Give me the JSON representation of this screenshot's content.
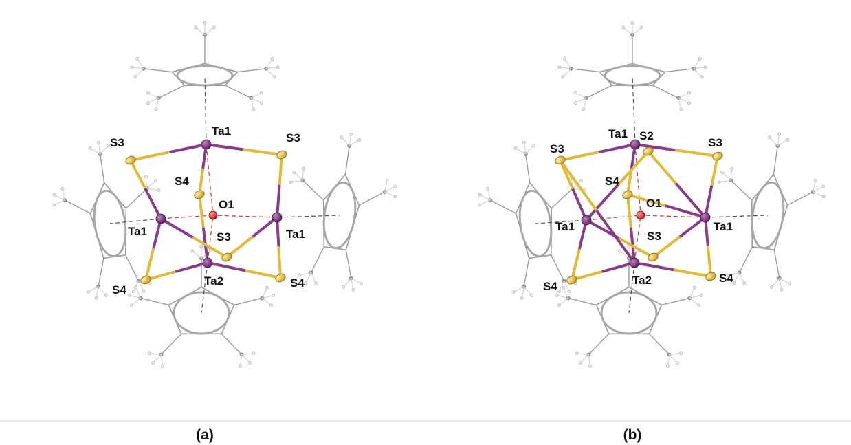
{
  "panels": [
    {
      "caption": "(a)",
      "labels": {
        "ta1_top": "Ta1",
        "s3_upper_left": "S3",
        "s3_upper_right": "S3",
        "s4_inner": "S4",
        "o1": "O1",
        "ta1_left": "Ta1",
        "ta1_right": "Ta1",
        "s3_center": "S3",
        "s4_lower_left": "S4",
        "ta2": "Ta2",
        "s4_lower_right": "S4"
      }
    },
    {
      "caption": "(b)",
      "labels": {
        "ta1_top": "Ta1",
        "s2": "S2",
        "s3_upper_left": "S3",
        "s3_upper_right": "S3",
        "s4_inner": "S4",
        "o1": "O1",
        "ta1_left": "Ta1",
        "ta1_right": "Ta1",
        "s3_center": "S3",
        "s4_lower_left": "S4",
        "ta2": "Ta2",
        "s4_lower_right": "S4"
      }
    }
  ],
  "colors": {
    "tantalum": "#8a3b8c",
    "sulfur": "#e2b93b",
    "oxygen": "#e02020",
    "carbon": "#9c9c9c",
    "hydrogen": "#cfcfcf",
    "ring": "#a8a8a8",
    "centroid_dash": "#555555",
    "oxo_dash": "#d23a3a",
    "divider": "#cccccc"
  }
}
